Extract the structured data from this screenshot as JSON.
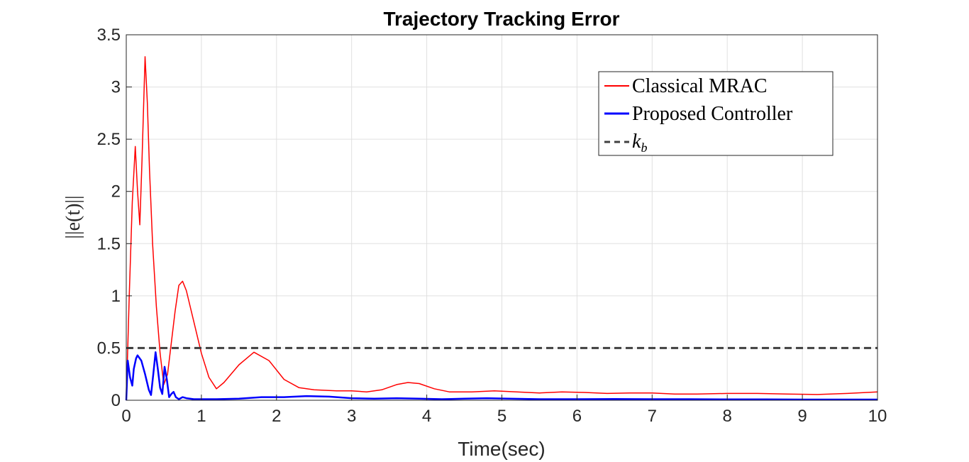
{
  "chart_data": {
    "type": "line",
    "title": "Trajectory Tracking Error",
    "xlabel": "Time(sec)",
    "ylabel": "||e(t)||",
    "xlim": [
      0,
      10
    ],
    "ylim": [
      0,
      3.5
    ],
    "xticks": [
      "0",
      "1",
      "2",
      "3",
      "4",
      "5",
      "6",
      "7",
      "8",
      "9",
      "10"
    ],
    "yticks": [
      "0",
      "0.5",
      "1",
      "1.5",
      "2",
      "2.5",
      "3",
      "3.5"
    ],
    "grid": true,
    "legend_position": "top-right",
    "series": [
      {
        "name": "Classical MRAC",
        "color": "#ff0000",
        "style": "solid",
        "x": [
          0,
          0.04,
          0.08,
          0.12,
          0.15,
          0.18,
          0.21,
          0.25,
          0.28,
          0.31,
          0.35,
          0.4,
          0.45,
          0.5,
          0.55,
          0.6,
          0.65,
          0.7,
          0.75,
          0.8,
          0.9,
          1.0,
          1.1,
          1.2,
          1.3,
          1.5,
          1.7,
          1.9,
          2.1,
          2.3,
          2.5,
          2.8,
          3.0,
          3.2,
          3.4,
          3.6,
          3.75,
          3.9,
          4.1,
          4.3,
          4.6,
          4.9,
          5.2,
          5.5,
          5.8,
          6.1,
          6.4,
          6.7,
          7.0,
          7.3,
          7.6,
          8.0,
          8.4,
          8.8,
          9.2,
          9.6,
          10.0
        ],
        "y": [
          0,
          1.0,
          1.9,
          2.43,
          2.0,
          1.68,
          2.3,
          3.29,
          2.85,
          2.2,
          1.5,
          0.9,
          0.45,
          0.15,
          0.25,
          0.55,
          0.85,
          1.1,
          1.14,
          1.05,
          0.75,
          0.45,
          0.22,
          0.11,
          0.17,
          0.34,
          0.46,
          0.38,
          0.2,
          0.12,
          0.1,
          0.09,
          0.09,
          0.08,
          0.1,
          0.15,
          0.17,
          0.16,
          0.11,
          0.08,
          0.08,
          0.09,
          0.08,
          0.07,
          0.08,
          0.075,
          0.065,
          0.07,
          0.07,
          0.06,
          0.06,
          0.065,
          0.065,
          0.06,
          0.055,
          0.065,
          0.08
        ]
      },
      {
        "name": "Proposed Controller",
        "color": "#0000ff",
        "style": "solid",
        "x": [
          0,
          0.02,
          0.05,
          0.08,
          0.1,
          0.13,
          0.15,
          0.2,
          0.25,
          0.3,
          0.33,
          0.36,
          0.39,
          0.42,
          0.45,
          0.48,
          0.51,
          0.54,
          0.57,
          0.6,
          0.63,
          0.66,
          0.7,
          0.75,
          0.8,
          0.9,
          1.0,
          1.2,
          1.5,
          1.8,
          2.1,
          2.4,
          2.7,
          3.0,
          3.3,
          3.6,
          3.9,
          4.2,
          4.5,
          4.8,
          5.1,
          5.5,
          6.0,
          6.5,
          7.0,
          7.5,
          8.0,
          8.5,
          9.0,
          9.5,
          10.0
        ],
        "y": [
          0,
          0.38,
          0.22,
          0.14,
          0.3,
          0.4,
          0.43,
          0.38,
          0.25,
          0.1,
          0.05,
          0.25,
          0.46,
          0.3,
          0.12,
          0.06,
          0.32,
          0.2,
          0.03,
          0.06,
          0.08,
          0.03,
          0.01,
          0.03,
          0.02,
          0.01,
          0.01,
          0.01,
          0.015,
          0.03,
          0.03,
          0.04,
          0.035,
          0.02,
          0.015,
          0.02,
          0.015,
          0.01,
          0.015,
          0.02,
          0.015,
          0.01,
          0.01,
          0.012,
          0.01,
          0.01,
          0.008,
          0.008,
          0.007,
          0.007,
          0.007
        ]
      },
      {
        "name": "kb",
        "color": "#404040",
        "style": "dashed",
        "x": [
          0,
          10
        ],
        "y": [
          0.5,
          0.5
        ]
      }
    ],
    "legend": {
      "entries": [
        {
          "label": "Classical MRAC"
        },
        {
          "label": "Proposed Controller"
        },
        {
          "label_main": "k",
          "label_sub": "b"
        }
      ]
    }
  }
}
